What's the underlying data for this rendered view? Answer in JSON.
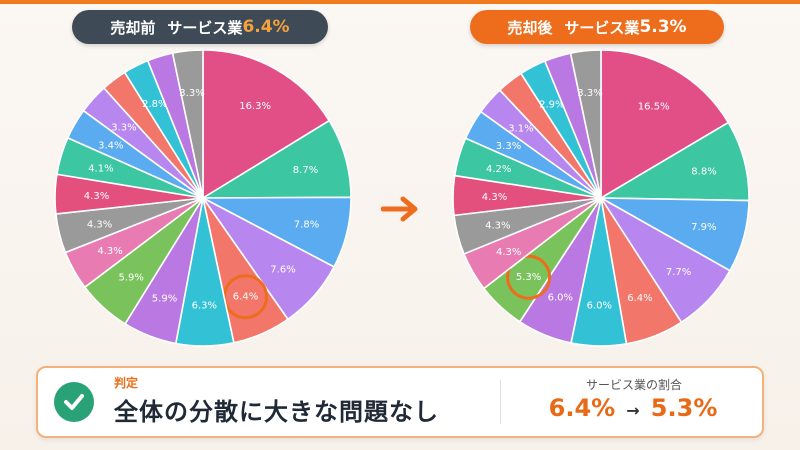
{
  "header": {
    "before_label": "売却前",
    "before_industry": "サービス業",
    "before_pct": "6.4%",
    "after_label": "売却後",
    "after_industry": "サービス業",
    "after_pct": "5.3%"
  },
  "chart_data": [
    {
      "type": "pie",
      "name": "売却前",
      "values": [
        16.3,
        8.7,
        7.8,
        7.6,
        6.4,
        6.3,
        5.9,
        5.9,
        4.3,
        4.3,
        4.3,
        4.1,
        3.4,
        3.3,
        2.8,
        2.8,
        2.8,
        3.3
      ],
      "labels": [
        "16.3%",
        "8.7%",
        "7.8%",
        "7.6%",
        "6.4%",
        "6.3%",
        "5.9%",
        "5.9%",
        "4.3%",
        "4.3%",
        "4.3%",
        "4.1%",
        "3.4%",
        "3.3%",
        "",
        "2.8%",
        "",
        "3.3%"
      ],
      "colors": [
        "#e24f86",
        "#3cc6a1",
        "#5aabef",
        "#b886ef",
        "#f2766a",
        "#33c1d6",
        "#b978e2",
        "#7ac25c",
        "#e87bb2",
        "#9a9a9a",
        "#e3507d",
        "#3cc6a1",
        "#5aabef",
        "#b886ef",
        "#f2766a",
        "#33c1d6",
        "#b978e2",
        "#9a9a9a"
      ],
      "highlight_index": 4
    },
    {
      "type": "pie",
      "name": "売却後",
      "values": [
        16.5,
        8.8,
        7.9,
        7.7,
        6.4,
        6.0,
        6.0,
        5.3,
        4.3,
        4.3,
        4.3,
        4.2,
        3.3,
        3.1,
        2.9,
        2.9,
        2.9,
        3.3
      ],
      "labels": [
        "16.5%",
        "8.8%",
        "7.9%",
        "7.7%",
        "6.4%",
        "6.0%",
        "6.0%",
        "5.3%",
        "4.3%",
        "4.3%",
        "4.3%",
        "4.2%",
        "3.3%",
        "3.1%",
        "",
        "2.9%",
        "",
        "3.3%"
      ],
      "colors": [
        "#e24f86",
        "#3cc6a1",
        "#5aabef",
        "#b886ef",
        "#f2766a",
        "#33c1d6",
        "#b978e2",
        "#7ac25c",
        "#e87bb2",
        "#9a9a9a",
        "#e3507d",
        "#3cc6a1",
        "#5aabef",
        "#b886ef",
        "#f2766a",
        "#33c1d6",
        "#b978e2",
        "#9a9a9a"
      ],
      "highlight_index": 7
    }
  ],
  "verdict": {
    "label": "判定",
    "text": "全体の分散に大きな問題なし",
    "icon": "check-circle-icon"
  },
  "ratio": {
    "label": "サービス業の割合",
    "before": "6.4%",
    "after": "5.3%",
    "arrow": "→"
  },
  "colors": {
    "accent": "#ee6d1c",
    "dark_pill": "#3f4a57",
    "success": "#2aa277"
  }
}
